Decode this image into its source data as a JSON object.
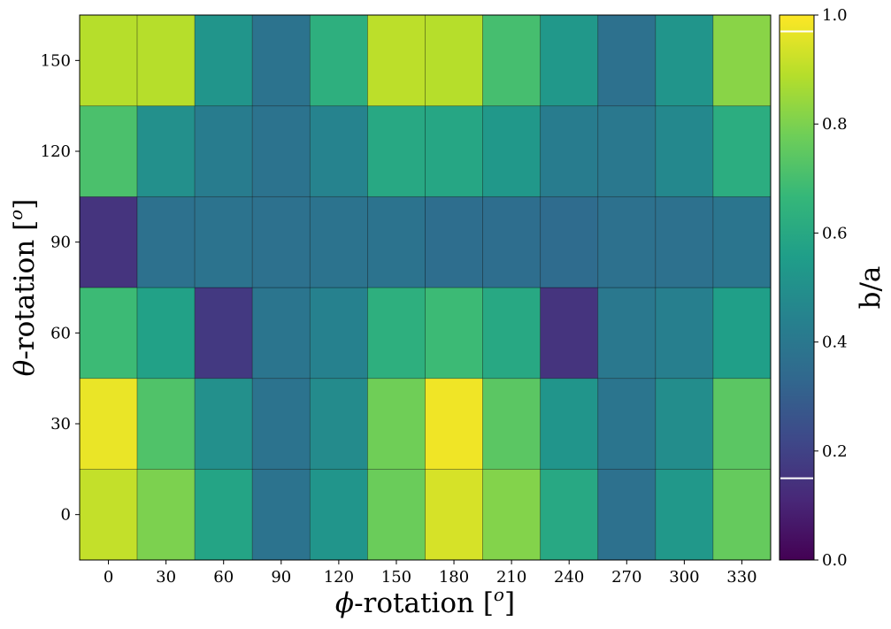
{
  "chart_data": {
    "type": "heatmap",
    "colormap": "viridis",
    "x": {
      "label": "ϕ-rotation [o]",
      "label_symbol": "ϕ",
      "label_text": "-rotation [",
      "label_sup": "o",
      "label_close": "]",
      "ticks": [
        0,
        30,
        60,
        90,
        120,
        150,
        180,
        210,
        240,
        270,
        300,
        330
      ],
      "tick_labels": [
        "0",
        "30",
        "60",
        "90",
        "120",
        "150",
        "180",
        "210",
        "240",
        "270",
        "300",
        "330"
      ]
    },
    "y": {
      "label": "θ-rotation [o]",
      "label_symbol": "θ",
      "label_text": "-rotation [",
      "label_sup": "o",
      "label_close": "]",
      "ticks": [
        0,
        30,
        60,
        90,
        120,
        150
      ],
      "tick_labels": [
        "0",
        "30",
        "60",
        "90",
        "120",
        "150"
      ]
    },
    "values": [
      [
        0.91,
        0.8,
        0.58,
        0.38,
        0.52,
        0.77,
        0.94,
        0.81,
        0.6,
        0.37,
        0.53,
        0.76
      ],
      [
        0.97,
        0.72,
        0.5,
        0.38,
        0.48,
        0.78,
        0.98,
        0.74,
        0.52,
        0.39,
        0.49,
        0.74
      ],
      [
        0.68,
        0.57,
        0.17,
        0.39,
        0.44,
        0.63,
        0.68,
        0.6,
        0.15,
        0.4,
        0.43,
        0.56
      ],
      [
        0.15,
        0.37,
        0.38,
        0.37,
        0.38,
        0.38,
        0.36,
        0.36,
        0.35,
        0.37,
        0.37,
        0.39
      ],
      [
        0.71,
        0.5,
        0.42,
        0.38,
        0.45,
        0.6,
        0.59,
        0.53,
        0.42,
        0.4,
        0.47,
        0.62
      ],
      [
        0.89,
        0.89,
        0.52,
        0.38,
        0.63,
        0.9,
        0.89,
        0.7,
        0.53,
        0.37,
        0.52,
        0.82
      ]
    ],
    "colorbar": {
      "label": "b/a",
      "range": [
        0.0,
        1.0
      ],
      "ticks": [
        0.0,
        0.2,
        0.4,
        0.6,
        0.8,
        1.0
      ],
      "tick_labels": [
        "0.0",
        "0.2",
        "0.4",
        "0.6",
        "0.8",
        "1.0"
      ],
      "marker_lines": [
        0.15,
        0.97
      ],
      "marker_color": "#ffffff"
    },
    "cell_edge_color": "#000000",
    "grid": false
  }
}
